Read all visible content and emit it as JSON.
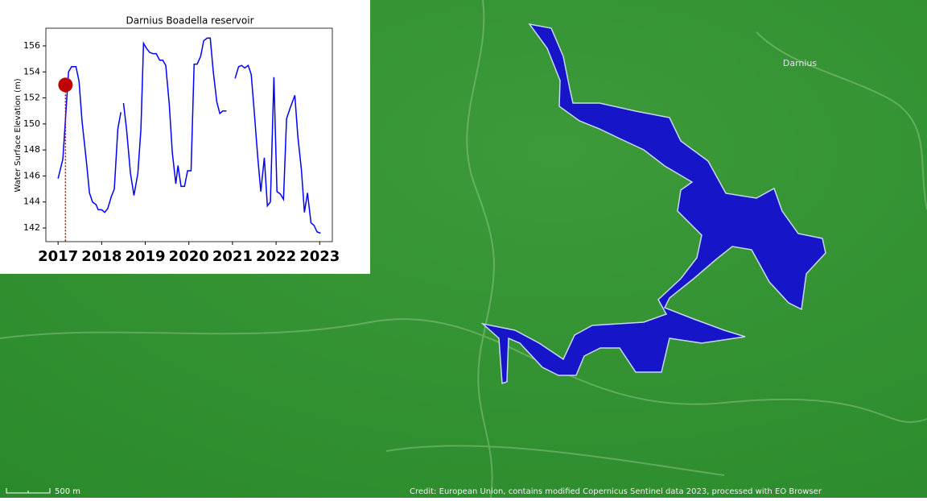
{
  "chart_data": {
    "type": "line",
    "title": "Darnius Boadella reservoir",
    "y_label": "Water Surface Elevation (m)",
    "x": [
      2017.0,
      2017.11,
      2017.24,
      2017.31,
      2017.41,
      2017.48,
      2017.55,
      2017.65,
      2017.72,
      2017.79,
      2017.87,
      2017.92,
      2018.0,
      2018.07,
      2018.14,
      2018.22,
      2018.29,
      2018.37,
      2018.44,
      null,
      2018.5,
      2018.57,
      2018.66,
      2018.74,
      2018.83,
      2018.9,
      2018.96,
      2019.03,
      2019.1,
      2019.18,
      2019.25,
      2019.33,
      2019.4,
      2019.47,
      2019.55,
      2019.62,
      2019.7,
      2019.75,
      2019.82,
      2019.9,
      2019.97,
      2020.05,
      2020.12,
      2020.19,
      2020.27,
      2020.34,
      2020.42,
      2020.49,
      2020.56,
      2020.64,
      2020.71,
      2020.78,
      2020.86,
      null,
      2021.06,
      2021.14,
      2021.21,
      2021.28,
      2021.36,
      2021.43,
      2021.5,
      2021.58,
      2021.65,
      2021.73,
      2021.8,
      2021.87,
      2021.95,
      2022.02,
      2022.1,
      2022.17,
      2022.24,
      2022.32,
      2022.43,
      2022.5,
      2022.58,
      2022.65,
      2022.72,
      2022.8,
      2022.87,
      2022.94,
      2023.02
    ],
    "series": [
      {
        "color": "#0000ff",
        "values": [
          145.8,
          147.3,
          154.0,
          154.4,
          154.4,
          153.3,
          150.2,
          147.1,
          144.7,
          144.0,
          143.8,
          143.4,
          143.4,
          143.2,
          143.5,
          144.4,
          145.0,
          149.6,
          150.9,
          null,
          151.6,
          149.6,
          146.2,
          144.5,
          146.2,
          149.6,
          156.2,
          155.8,
          155.5,
          155.4,
          155.4,
          154.9,
          154.9,
          154.5,
          151.5,
          147.8,
          145.4,
          146.8,
          145.2,
          145.2,
          146.4,
          146.4,
          154.6,
          154.6,
          155.2,
          156.4,
          156.6,
          156.6,
          154.0,
          151.7,
          150.8,
          151.0,
          151.0,
          null,
          153.5,
          154.4,
          154.5,
          154.3,
          154.5,
          153.8,
          150.9,
          147.4,
          144.8,
          147.4,
          143.7,
          144.0,
          153.6,
          144.8,
          144.6,
          144.2,
          150.4,
          151.2,
          152.2,
          149.0,
          146.5,
          143.2,
          144.7,
          142.4,
          142.2,
          141.7,
          141.6
        ]
      }
    ],
    "marker": {
      "x": 2017.17,
      "y": 153.0,
      "color": "#c00000"
    },
    "xlim": [
      2016.72,
      2023.29
    ],
    "xticks": [
      2017,
      2018,
      2019,
      2020,
      2021,
      2022,
      2023
    ],
    "ylim": [
      140.95,
      157.36
    ],
    "yticks": [
      142,
      144,
      146,
      148,
      150,
      152,
      154,
      156
    ]
  },
  "map": {
    "place_label": "Darnius",
    "scale_label": "500 m",
    "credit": "Credit: European Union, contains modified Copernicus Sentinel data 2023, processed with EO Browser"
  }
}
